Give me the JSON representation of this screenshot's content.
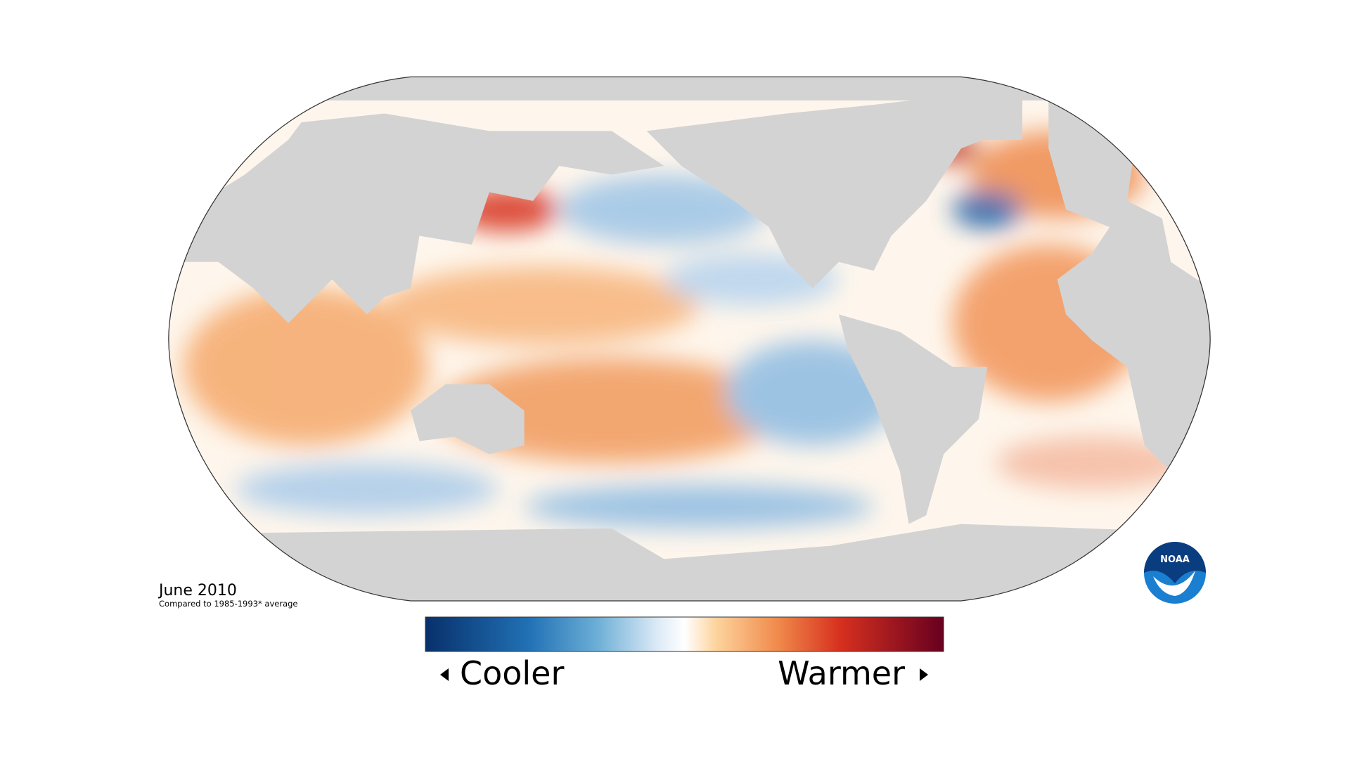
{
  "title": "June 2010",
  "subtitle": "Compared to 1985-1993* average",
  "legend": {
    "low": "Cooler",
    "high": "Warmer"
  },
  "logo": "NOAA"
}
